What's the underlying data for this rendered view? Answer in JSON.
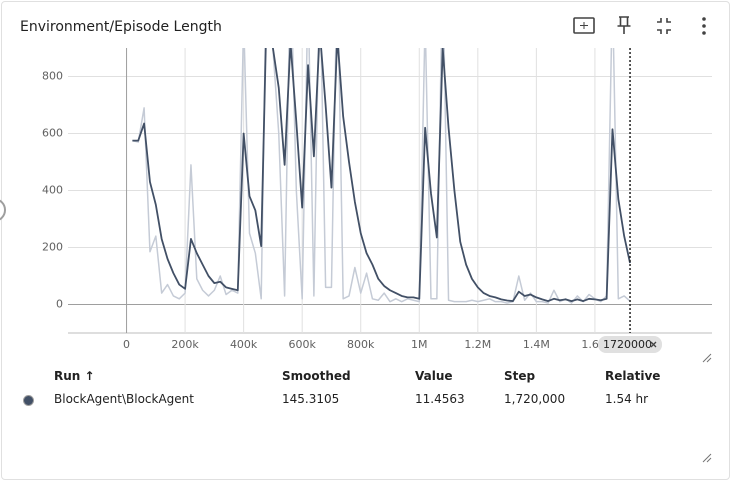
{
  "chart_data": {
    "type": "line",
    "title": "Environment/Episode Length",
    "x": [
      20000,
      40000,
      60000,
      80000,
      100000,
      120000,
      140000,
      160000,
      180000,
      200000,
      220000,
      240000,
      260000,
      280000,
      300000,
      320000,
      340000,
      360000,
      380000,
      400000,
      420000,
      440000,
      460000,
      480000,
      500000,
      520000,
      540000,
      560000,
      580000,
      600000,
      620000,
      640000,
      660000,
      680000,
      700000,
      720000,
      740000,
      760000,
      780000,
      800000,
      820000,
      840000,
      860000,
      880000,
      900000,
      920000,
      940000,
      960000,
      980000,
      1000000,
      1020000,
      1040000,
      1060000,
      1080000,
      1100000,
      1120000,
      1140000,
      1160000,
      1180000,
      1200000,
      1220000,
      1240000,
      1260000,
      1280000,
      1300000,
      1320000,
      1340000,
      1360000,
      1380000,
      1400000,
      1420000,
      1440000,
      1460000,
      1480000,
      1500000,
      1520000,
      1540000,
      1560000,
      1580000,
      1600000,
      1620000,
      1640000,
      1660000,
      1680000,
      1700000,
      1720000
    ],
    "series": [
      {
        "color": "#c5cbd6",
        "values": [
          575,
          570,
          690,
          185,
          240,
          40,
          70,
          30,
          20,
          40,
          490,
          90,
          50,
          30,
          50,
          100,
          35,
          50,
          40,
          1000,
          250,
          180,
          20,
          1300,
          900,
          600,
          30,
          1200,
          400,
          20,
          1100,
          30,
          1200,
          60,
          60,
          1200,
          20,
          30,
          130,
          40,
          110,
          20,
          15,
          40,
          10,
          20,
          10,
          20,
          15,
          10,
          1000,
          20,
          20,
          1200,
          15,
          10,
          10,
          10,
          15,
          10,
          15,
          20,
          10,
          10,
          5,
          10,
          100,
          15,
          40,
          10,
          10,
          5,
          50,
          10,
          20,
          5,
          30,
          10,
          35,
          20,
          10,
          30,
          1100,
          20,
          30,
          11.4563
        ]
      },
      {
        "name": "BlockAgent\\BlockAgent",
        "color": "#425066",
        "values": [
          575,
          575,
          635,
          430,
          350,
          230,
          160,
          110,
          70,
          55,
          230,
          180,
          140,
          100,
          75,
          80,
          60,
          55,
          50,
          600,
          380,
          330,
          205,
          1100,
          900,
          760,
          490,
          920,
          640,
          340,
          840,
          520,
          960,
          700,
          410,
          940,
          660,
          500,
          360,
          250,
          180,
          140,
          90,
          65,
          50,
          40,
          30,
          25,
          25,
          20,
          620,
          390,
          235,
          900,
          620,
          400,
          220,
          140,
          90,
          60,
          40,
          30,
          25,
          18,
          14,
          12,
          45,
          30,
          35,
          25,
          18,
          12,
          20,
          15,
          18,
          12,
          18,
          12,
          20,
          18,
          15,
          20,
          615,
          370,
          240,
          145.3105
        ]
      }
    ],
    "xlim": [
      -200000,
      2000000
    ],
    "xticks": [
      {
        "value": 0,
        "label": "0"
      },
      {
        "value": 200000,
        "label": "200k"
      },
      {
        "value": 400000,
        "label": "400k"
      },
      {
        "value": 600000,
        "label": "600k"
      },
      {
        "value": 800000,
        "label": "800k"
      },
      {
        "value": 1000000,
        "label": "1M"
      },
      {
        "value": 1200000,
        "label": "1.2M"
      },
      {
        "value": 1400000,
        "label": "1.4M"
      },
      {
        "value": 1600000,
        "label": "1.6M"
      }
    ],
    "ylim": [
      -100,
      900
    ],
    "yticks": [
      0,
      200,
      400,
      600,
      800
    ],
    "grid": true,
    "hover_step": 1720000
  },
  "table": {
    "headers": [
      "Run ↑",
      "Smoothed",
      "Value",
      "Step",
      "Relative"
    ],
    "rows": [
      [
        "BlockAgent\\BlockAgent",
        "145.3105",
        "11.4563",
        "1,720,000",
        "1.54 hr"
      ]
    ]
  }
}
